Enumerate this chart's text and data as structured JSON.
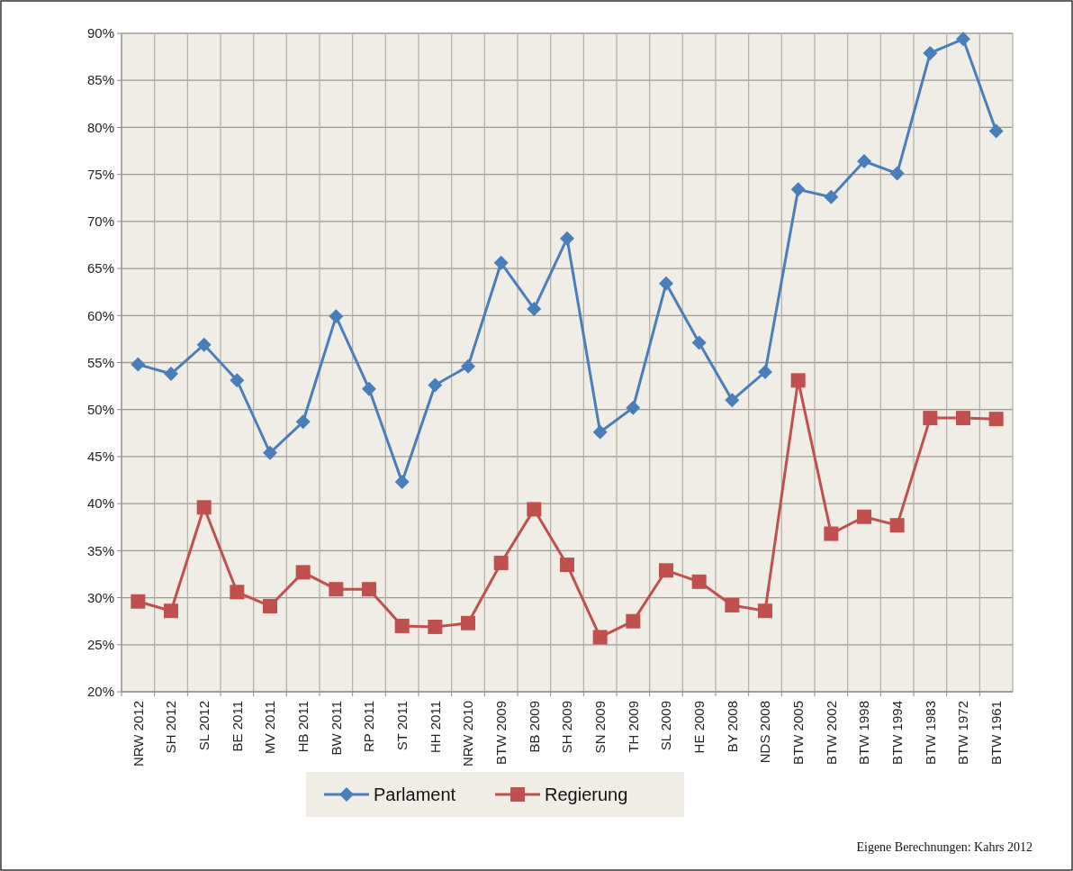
{
  "chart_data": {
    "type": "line",
    "categories": [
      "NRW 2012",
      "SH 2012",
      "SL 2012",
      "BE 2011",
      "MV 2011",
      "HB 2011",
      "BW 2011",
      "RP 2011",
      "ST 2011",
      "HH 2011",
      "NRW 2010",
      "BTW 2009",
      "BB 2009",
      "SH 2009",
      "SN 2009",
      "TH 2009",
      "SL 2009",
      "HE 2009",
      "BY 2008",
      "NDS 2008",
      "BTW 2005",
      "BTW 2002",
      "BTW 1998",
      "BTW 1994",
      "BTW 1983",
      "BTW 1972",
      "BTW 1961"
    ],
    "series": [
      {
        "name": "Parlament",
        "color": "#4a7ebb",
        "marker": "diamond",
        "values": [
          54.8,
          53.8,
          56.9,
          53.1,
          45.4,
          48.7,
          59.9,
          52.2,
          42.3,
          52.6,
          54.6,
          65.6,
          60.7,
          68.2,
          47.6,
          50.2,
          63.4,
          57.1,
          51.0,
          54.0,
          73.4,
          72.6,
          76.4,
          75.1,
          87.9,
          89.4,
          79.6
        ]
      },
      {
        "name": "Regierung",
        "color": "#c0504d",
        "marker": "square",
        "values": [
          29.6,
          28.6,
          39.6,
          30.6,
          29.1,
          32.7,
          30.9,
          30.9,
          27.0,
          26.9,
          27.3,
          33.7,
          39.4,
          33.5,
          25.8,
          27.5,
          32.9,
          31.7,
          29.2,
          28.6,
          53.1,
          36.8,
          38.6,
          37.7,
          49.1,
          49.1,
          49.0
        ]
      }
    ],
    "ylim": [
      20,
      90
    ],
    "yticks": [
      {
        "value": 20,
        "label": "20%"
      },
      {
        "value": 25,
        "label": "25%"
      },
      {
        "value": 30,
        "label": "30%"
      },
      {
        "value": 35,
        "label": "35%"
      },
      {
        "value": 40,
        "label": "40%"
      },
      {
        "value": 45,
        "label": "45%"
      },
      {
        "value": 50,
        "label": "50%"
      },
      {
        "value": 55,
        "label": "55%"
      },
      {
        "value": 60,
        "label": "60%"
      },
      {
        "value": 65,
        "label": "65%"
      },
      {
        "value": 70,
        "label": "70%"
      },
      {
        "value": 75,
        "label": "75%"
      },
      {
        "value": 80,
        "label": "80%"
      },
      {
        "value": 85,
        "label": "85%"
      },
      {
        "value": 90,
        "label": "90%"
      }
    ],
    "grid": true,
    "legend": "bottom",
    "annotations": [
      "Eigene Berechnungen: Kahrs 2012"
    ]
  }
}
